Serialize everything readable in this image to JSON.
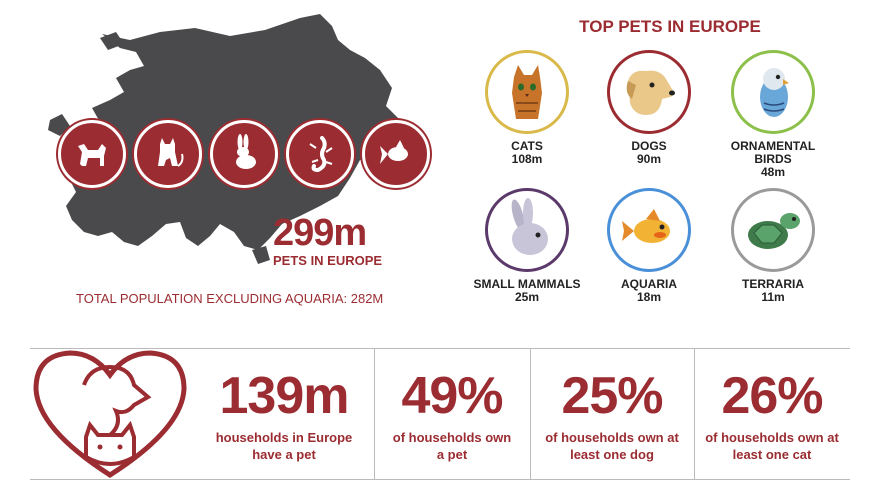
{
  "map": {
    "total_value": "299m",
    "total_label": "PETS IN EUROPE",
    "excluding_text": "TOTAL POPULATION EXCLUDING AQUARIA: 282M",
    "icons": [
      "dog-icon",
      "cat-icon",
      "rabbit-icon",
      "lizard-icon",
      "goldfish-icon"
    ]
  },
  "top_pets": {
    "title": "TOP PETS IN EUROPE",
    "items": [
      {
        "name": "CATS",
        "count": "108m",
        "ring_color": "#d9b94a"
      },
      {
        "name": "DOGS",
        "count": "90m",
        "ring_color": "#9b2c31"
      },
      {
        "name": "ORNAMENTAL BIRDS",
        "count": "48m",
        "ring_color": "#8cc04a"
      },
      {
        "name": "SMALL MAMMALS",
        "count": "25m",
        "ring_color": "#5b3a6b"
      },
      {
        "name": "AQUARIA",
        "count": "18m",
        "ring_color": "#4a90d9"
      },
      {
        "name": "TERRARIA",
        "count": "11m",
        "ring_color": "#9a9a9a"
      }
    ]
  },
  "stats": [
    {
      "value": "139m",
      "line1": "households in Europe",
      "line2": "have a pet"
    },
    {
      "value": "49%",
      "line1": "of households own",
      "line2": "a pet"
    },
    {
      "value": "25%",
      "line1": "of households own at",
      "line2": "least one dog"
    },
    {
      "value": "26%",
      "line1": "of households own at",
      "line2": "least one cat"
    }
  ],
  "colors": {
    "accent": "#9b2c31",
    "map": "#4a4a4c"
  }
}
